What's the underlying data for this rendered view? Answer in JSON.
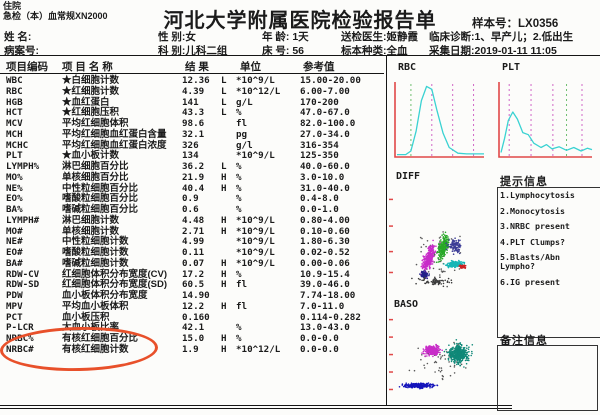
{
  "colors": {
    "axis_red": "#e04848",
    "curve_cyan": "#3ad2d2",
    "grid_magenta": "#d066c6",
    "grid_green": "#6fbf6f",
    "highlight_orange": "#e8502a"
  },
  "header": {
    "corner_line1": "住院",
    "corner_line2": "急检（本）血常规XN2000",
    "title": "河北大学附属医院检验报告单",
    "sample_label": "样本号：LX0356",
    "info_rows": [
      [
        {
          "label": "姓  名:",
          "value": ""
        },
        {
          "label": "性 别:",
          "value": "女"
        },
        {
          "label": "年 龄: ",
          "value": "1天"
        },
        {
          "label": "送检医生:",
          "value": "姬静霞"
        },
        {
          "label": "临床诊断:",
          "value": "1、早产儿；2.低出生"
        }
      ],
      [
        {
          "label": "病案号:",
          "value": ""
        },
        {
          "label": "科 别:",
          "value": "儿科二组"
        },
        {
          "label": "床 号: ",
          "value": "56"
        },
        {
          "label": "标本种类:",
          "value": "全血"
        },
        {
          "label": "采集日期:",
          "value": "2019-01-11 11:05"
        }
      ]
    ]
  },
  "table": {
    "headers": [
      "项目编码",
      "项 目 名 称",
      "结 果",
      "单位",
      "参考值"
    ],
    "rows": [
      {
        "code": "WBC",
        "name": "★白细胞计数",
        "result": "12.36",
        "flag": "L",
        "unit": "*10^9/L",
        "ref": "15.00-20.00"
      },
      {
        "code": "RBC",
        "name": "★红细胞计数",
        "result": "4.39",
        "flag": "L",
        "unit": "*10^12/L",
        "ref": "6.00-7.00"
      },
      {
        "code": "HGB",
        "name": "★血红蛋白",
        "result": "141",
        "flag": "L",
        "unit": "g/L",
        "ref": "170-200"
      },
      {
        "code": "HCT",
        "name": "★红细胞压积",
        "result": "43.3",
        "flag": "L",
        "unit": "%",
        "ref": "47.0-67.0"
      },
      {
        "code": "MCV",
        "name": "平均红细胞体积",
        "result": "98.6",
        "flag": "",
        "unit": "fl",
        "ref": "82.0-100.0"
      },
      {
        "code": "MCH",
        "name": "平均红细胞血红蛋白含量",
        "result": "32.1",
        "flag": "",
        "unit": "pg",
        "ref": "27.0-34.0"
      },
      {
        "code": "MCHC",
        "name": "平均红细胞血红蛋白浓度",
        "result": "326",
        "flag": "",
        "unit": "g/l",
        "ref": "316-354"
      },
      {
        "code": "PLT",
        "name": "★血小板计数",
        "result": "134",
        "flag": "",
        "unit": "*10^9/L",
        "ref": "125-350"
      },
      {
        "code": "LYMPH%",
        "name": "淋巴细胞百分比",
        "result": "36.2",
        "flag": "L",
        "unit": "%",
        "ref": "40.0-60.0"
      },
      {
        "code": "MO%",
        "name": "单核细胞百分比",
        "result": "21.9",
        "flag": "H",
        "unit": "%",
        "ref": "3.0-10.0"
      },
      {
        "code": "NE%",
        "name": "中性粒细胞百分比",
        "result": "40.4",
        "flag": "H",
        "unit": "%",
        "ref": "31.0-40.0"
      },
      {
        "code": "EO%",
        "name": "嗜酸粒细胞百分比",
        "result": "0.9",
        "flag": "",
        "unit": "%",
        "ref": "0.4-8.0"
      },
      {
        "code": "BA%",
        "name": "嗜碱粒细胞百分比",
        "result": "0.6",
        "flag": "",
        "unit": "%",
        "ref": "0.0-1.0"
      },
      {
        "code": "LYMPH#",
        "name": "淋巴细胞计数",
        "result": "4.48",
        "flag": "H",
        "unit": "*10^9/L",
        "ref": "0.80-4.00"
      },
      {
        "code": "MO#",
        "name": "单核细胞计数",
        "result": "2.71",
        "flag": "H",
        "unit": "*10^9/L",
        "ref": "0.10-0.60"
      },
      {
        "code": "NE#",
        "name": "中性粒细胞计数",
        "result": "4.99",
        "flag": "",
        "unit": "*10^9/L",
        "ref": "1.80-6.30"
      },
      {
        "code": "EO#",
        "name": "嗜酸粒细胞计数",
        "result": "0.11",
        "flag": "",
        "unit": "*10^9/L",
        "ref": "0.02-0.52"
      },
      {
        "code": "BA#",
        "name": "嗜碱粒细胞计数",
        "result": "0.07",
        "flag": "H",
        "unit": "*10^9/L",
        "ref": "0.00-0.06"
      },
      {
        "code": "RDW-CV",
        "name": "红细胞体积分布宽度(CV)",
        "result": "17.2",
        "flag": "H",
        "unit": "%",
        "ref": "10.9-15.4"
      },
      {
        "code": "RDW-SD",
        "name": "红细胞体积分布宽度(SD)",
        "result": "60.5",
        "flag": "H",
        "unit": "fl",
        "ref": "39.0-46.0"
      },
      {
        "code": "PDW",
        "name": "血小板体积分布宽度",
        "result": "14.90",
        "flag": "",
        "unit": "",
        "ref": "7.74-18.00"
      },
      {
        "code": "MPV",
        "name": "平均血小板体积",
        "result": "12.2",
        "flag": "H",
        "unit": "fl",
        "ref": "7.0-11.0"
      },
      {
        "code": "PCT",
        "name": "血小板压积",
        "result": "0.160",
        "flag": "",
        "unit": "",
        "ref": "0.114-0.282"
      },
      {
        "code": "P-LCR",
        "name": "大血小板比率",
        "result": "42.1",
        "flag": "",
        "unit": "%",
        "ref": "13.0-43.0"
      },
      {
        "code": "NRBC%",
        "name": "有核红细胞百分比",
        "result": "15.0",
        "flag": "H",
        "unit": "%",
        "ref": "0.0-0.0"
      },
      {
        "code": "NRBC#",
        "name": "有核红细胞计数",
        "result": "1.9",
        "flag": "H",
        "unit": "*10^12/L",
        "ref": "0.0-0.0"
      }
    ]
  },
  "highlight": {
    "shape": "ellipse",
    "color": "#e8502a",
    "target": "NRBC% / NRBC# rows"
  },
  "right_panel": {
    "tips_title": "提示信息",
    "tips": [
      "1.Lymphocytosis",
      "2.Monocytosis",
      "3.NRBC present",
      "4.PLT Clumps?",
      "5.Blasts/Abn Lympho?",
      "6.IG present"
    ],
    "remarks_title": "备注信息",
    "remarks_content": ""
  },
  "chart_data": [
    {
      "type": "area",
      "title": "RBC",
      "axis_color": "#e04848",
      "curve_color": "#3ad2d2",
      "curve": [
        [
          0,
          0.02
        ],
        [
          0.1,
          0.02
        ],
        [
          0.16,
          0.07
        ],
        [
          0.22,
          0.35
        ],
        [
          0.28,
          0.78
        ],
        [
          0.34,
          0.98
        ],
        [
          0.4,
          0.94
        ],
        [
          0.46,
          0.64
        ],
        [
          0.53,
          0.32
        ],
        [
          0.6,
          0.12
        ],
        [
          0.7,
          0.04
        ],
        [
          0.8,
          0.03
        ],
        [
          1,
          0.03
        ]
      ],
      "gridlines": [
        {
          "x": 0.16,
          "color": "#6fbf6f"
        },
        {
          "x": 0.4,
          "color": "#d066c6"
        },
        {
          "x": 0.64,
          "color": "#d066c6"
        },
        {
          "x": 0.88,
          "color": "#d066c6"
        }
      ]
    },
    {
      "type": "area",
      "title": "PLT",
      "axis_color": "#e04848",
      "curve_color": "#3ad2d2",
      "curve": [
        [
          0,
          0.05
        ],
        [
          0.04,
          0.25
        ],
        [
          0.08,
          0.5
        ],
        [
          0.13,
          0.62
        ],
        [
          0.18,
          0.52
        ],
        [
          0.24,
          0.33
        ],
        [
          0.3,
          0.3
        ],
        [
          0.36,
          0.18
        ],
        [
          0.44,
          0.12
        ],
        [
          0.5,
          0.16
        ],
        [
          0.56,
          0.1
        ],
        [
          0.64,
          0.13
        ],
        [
          0.72,
          0.08
        ],
        [
          0.8,
          0.12
        ],
        [
          0.88,
          0.07
        ],
        [
          0.95,
          0.11
        ],
        [
          1,
          0.09
        ]
      ],
      "gridlines": [
        {
          "x": 0.09,
          "color": "#d066c6"
        },
        {
          "x": 0.33,
          "color": "#d066c6"
        },
        {
          "x": 0.57,
          "color": "#d066c6"
        },
        {
          "x": 0.72,
          "color": "#6fbf6f"
        },
        {
          "x": 0.89,
          "color": "#d066c6"
        }
      ]
    },
    {
      "type": "scatter",
      "title": "DIFF",
      "tick_color": "#e04848",
      "ticks_y": [
        0.15,
        0.38,
        0.6,
        0.78
      ],
      "clusters": [
        {
          "name": "debris",
          "color": "#5a5a5a",
          "cx": 0.45,
          "cy": 0.62,
          "rx": 0.26,
          "ry": 0.28,
          "angle": 0,
          "count": 60
        },
        {
          "name": "lymphocyte",
          "color": "#c82cc8",
          "cx": 0.37,
          "cy": 0.66,
          "rx": 0.055,
          "ry": 0.16,
          "angle": 20,
          "count": 320
        },
        {
          "name": "monocyte",
          "color": "#28a828",
          "cx": 0.5,
          "cy": 0.56,
          "rx": 0.05,
          "ry": 0.135,
          "angle": 18,
          "count": 260
        },
        {
          "name": "neutrophil",
          "color": "#17b6b6",
          "cx": 0.61,
          "cy": 0.71,
          "rx": 0.1,
          "ry": 0.035,
          "angle": -8,
          "count": 230
        },
        {
          "name": "eosinophil",
          "color": "#cc2222",
          "cx": 0.68,
          "cy": 0.73,
          "rx": 0.035,
          "ry": 0.018,
          "angle": 0,
          "count": 45
        },
        {
          "name": "ig-blue",
          "color": "#3c3c96",
          "cx": 0.61,
          "cy": 0.55,
          "rx": 0.085,
          "ry": 0.085,
          "angle": 0,
          "count": 110
        },
        {
          "name": "nrbc-dark",
          "color": "#222288",
          "cx": 0.33,
          "cy": 0.8,
          "rx": 0.055,
          "ry": 0.035,
          "angle": 0,
          "count": 90
        },
        {
          "name": "ground",
          "color": "#3a3a3a",
          "cx": 0.42,
          "cy": 0.86,
          "rx": 0.22,
          "ry": 0.05,
          "angle": 0,
          "count": 70
        }
      ]
    },
    {
      "type": "scatter",
      "title": "BASO",
      "tick_color": "#e04848",
      "ticks_y": [
        0.12,
        0.3,
        0.48,
        0.66,
        0.84
      ],
      "clusters": [
        {
          "name": "debris",
          "color": "#5a5a5a",
          "cx": 0.48,
          "cy": 0.55,
          "rx": 0.3,
          "ry": 0.26,
          "angle": 0,
          "count": 55
        },
        {
          "name": "lymph-pink",
          "color": "#c82cc8",
          "cx": 0.4,
          "cy": 0.44,
          "rx": 0.095,
          "ry": 0.065,
          "angle": 0,
          "count": 260
        },
        {
          "name": "wbc-teal",
          "color": "#0f8878",
          "cx": 0.64,
          "cy": 0.47,
          "rx": 0.12,
          "ry": 0.125,
          "angle": 0,
          "count": 380
        },
        {
          "name": "nrbc-band",
          "color": "#1515bb",
          "cx": 0.28,
          "cy": 0.8,
          "rx": 0.18,
          "ry": 0.03,
          "angle": 0,
          "count": 320
        }
      ]
    }
  ]
}
